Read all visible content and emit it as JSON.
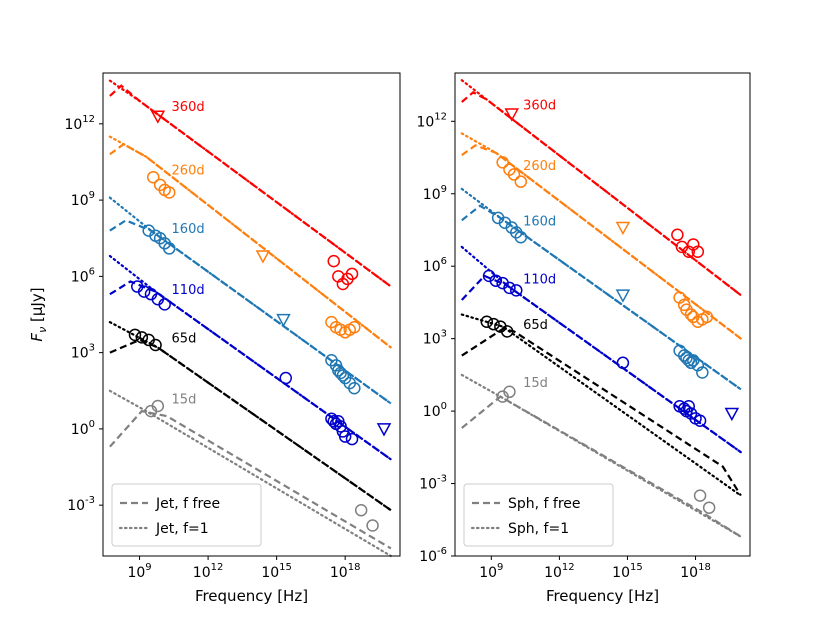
{
  "chart_data": [
    {
      "type": "line",
      "panel": "left",
      "xlabel": "Frequency [Hz]",
      "ylabel": "F_ν [μJy]",
      "xscale": "log",
      "yscale": "log",
      "xlim_log10": [
        7.4,
        20.4
      ],
      "ylim_log10": [
        -5.0,
        14.0
      ],
      "xticks": [
        {
          "v": 9,
          "label": "10^9"
        },
        {
          "v": 12,
          "label": "10^12"
        },
        {
          "v": 15,
          "label": "10^15"
        },
        {
          "v": 18,
          "label": "10^18"
        }
      ],
      "yticks": [
        {
          "v": 12,
          "label": "10^12"
        },
        {
          "v": 9,
          "label": "10^9"
        },
        {
          "v": 6,
          "label": "10^6"
        },
        {
          "v": 3,
          "label": "10^3"
        },
        {
          "v": 0,
          "label": "10^0"
        },
        {
          "v": -3,
          "label": "10^-3"
        }
      ],
      "legend": {
        "location": "lower-left",
        "entries": [
          {
            "style": "dashed",
            "label": "Jet, f free"
          },
          {
            "style": "dotted",
            "label": "Jet, f=1"
          }
        ]
      },
      "series": [
        {
          "name": "360d",
          "color": "#ff0000",
          "model_dashed": [
            [
              7.7,
              13.1
            ],
            [
              8.2,
              13.5
            ],
            [
              9.0,
              12.9
            ],
            [
              20.0,
              5.6
            ]
          ],
          "model_dotted": [
            [
              7.7,
              13.7
            ],
            [
              9.0,
              12.9
            ],
            [
              20.0,
              5.6
            ]
          ],
          "points": [
            [
              17.5,
              6.6
            ],
            [
              17.7,
              6.0
            ],
            [
              17.9,
              5.7
            ],
            [
              18.1,
              5.9
            ],
            [
              18.3,
              6.1
            ]
          ],
          "upper_limits": [
            [
              9.8,
              12.3
            ]
          ],
          "label": {
            "text": "360d",
            "pos": [
              10.4,
              12.7
            ]
          }
        },
        {
          "name": "260d",
          "color": "#ff7f0e",
          "model_dashed": [
            [
              7.7,
              10.8
            ],
            [
              8.3,
              11.2
            ],
            [
              9.3,
              10.7
            ],
            [
              20.0,
              3.2
            ]
          ],
          "model_dotted": [
            [
              7.7,
              11.5
            ],
            [
              9.3,
              10.7
            ],
            [
              20.0,
              3.2
            ]
          ],
          "points": [
            [
              9.6,
              9.9
            ],
            [
              9.9,
              9.6
            ],
            [
              10.1,
              9.4
            ],
            [
              10.3,
              9.3
            ],
            [
              17.4,
              4.2
            ],
            [
              17.6,
              4.0
            ],
            [
              17.8,
              3.9
            ],
            [
              18.0,
              3.8
            ],
            [
              18.2,
              3.9
            ],
            [
              18.4,
              4.0
            ]
          ],
          "upper_limits": [
            [
              14.4,
              6.8
            ]
          ],
          "label": {
            "text": "260d",
            "pos": [
              10.4,
              10.2
            ]
          }
        },
        {
          "name": "160d",
          "color": "#1f77b4",
          "model_dashed": [
            [
              7.7,
              7.8
            ],
            [
              8.4,
              8.2
            ],
            [
              9.5,
              7.8
            ],
            [
              20.0,
              1.0
            ]
          ],
          "model_dotted": [
            [
              7.7,
              9.1
            ],
            [
              9.5,
              7.8
            ],
            [
              20.0,
              1.0
            ]
          ],
          "points": [
            [
              9.4,
              7.8
            ],
            [
              9.7,
              7.6
            ],
            [
              9.9,
              7.5
            ],
            [
              10.1,
              7.3
            ],
            [
              10.3,
              7.1
            ],
            [
              17.4,
              2.7
            ],
            [
              17.6,
              2.5
            ],
            [
              17.7,
              2.3
            ],
            [
              17.8,
              2.2
            ],
            [
              17.9,
              2.1
            ],
            [
              18.0,
              2.0
            ],
            [
              18.2,
              1.8
            ],
            [
              18.4,
              1.6
            ]
          ],
          "upper_limits": [
            [
              15.3,
              4.3
            ]
          ],
          "label": {
            "text": "160d",
            "pos": [
              10.4,
              7.9
            ]
          }
        },
        {
          "name": "110d",
          "color": "#0000cc",
          "model_dashed": [
            [
              7.7,
              5.3
            ],
            [
              8.6,
              5.8
            ],
            [
              9.7,
              5.4
            ],
            [
              20.0,
              -1.2
            ]
          ],
          "model_dotted": [
            [
              7.7,
              6.8
            ],
            [
              9.7,
              5.4
            ],
            [
              20.0,
              -1.2
            ]
          ],
          "points": [
            [
              8.9,
              5.6
            ],
            [
              9.2,
              5.4
            ],
            [
              9.5,
              5.3
            ],
            [
              9.8,
              5.1
            ],
            [
              10.1,
              4.9
            ],
            [
              15.4,
              2.0
            ],
            [
              17.4,
              0.4
            ],
            [
              17.5,
              0.3
            ],
            [
              17.6,
              0.2
            ],
            [
              17.7,
              0.3
            ],
            [
              17.8,
              0.1
            ],
            [
              17.9,
              -0.1
            ],
            [
              18.0,
              -0.3
            ],
            [
              18.3,
              -0.4
            ]
          ],
          "upper_limits": [
            [
              19.7,
              0.0
            ]
          ],
          "label": {
            "text": "110d",
            "pos": [
              10.4,
              5.5
            ]
          }
        },
        {
          "name": "65d",
          "color": "#000000",
          "model_dashed": [
            [
              7.7,
              3.0
            ],
            [
              9.0,
              3.5
            ],
            [
              9.8,
              3.2
            ],
            [
              20.0,
              -3.2
            ]
          ],
          "model_dotted": [
            [
              7.7,
              4.2
            ],
            [
              9.8,
              3.2
            ],
            [
              20.0,
              -3.2
            ]
          ],
          "points": [
            [
              8.8,
              3.7
            ],
            [
              9.1,
              3.6
            ],
            [
              9.4,
              3.5
            ],
            [
              9.7,
              3.3
            ]
          ],
          "upper_limits": [],
          "label": {
            "text": "65d",
            "pos": [
              10.4,
              3.6
            ]
          }
        },
        {
          "name": "15d",
          "color": "#808080",
          "model_dashed": [
            [
              7.7,
              -0.7
            ],
            [
              9.1,
              0.7
            ],
            [
              10.2,
              0.5
            ],
            [
              20.0,
              -4.7
            ]
          ],
          "model_dotted": [
            [
              7.7,
              1.5
            ],
            [
              9.1,
              0.8
            ],
            [
              20.0,
              -5.0
            ]
          ],
          "points": [
            [
              9.5,
              0.7
            ],
            [
              9.8,
              0.9
            ],
            [
              18.7,
              -3.2
            ],
            [
              19.2,
              -3.8
            ]
          ],
          "upper_limits": [],
          "label": {
            "text": "15d",
            "pos": [
              10.4,
              1.2
            ]
          }
        }
      ]
    },
    {
      "type": "line",
      "panel": "right",
      "xlabel": "Frequency [Hz]",
      "ylabel": "",
      "xscale": "log",
      "yscale": "log",
      "xlim_log10": [
        7.4,
        20.4
      ],
      "ylim_log10": [
        -6.0,
        14.0
      ],
      "xticks": [
        {
          "v": 9,
          "label": "10^9"
        },
        {
          "v": 12,
          "label": "10^12"
        },
        {
          "v": 15,
          "label": "10^15"
        },
        {
          "v": 18,
          "label": "10^18"
        }
      ],
      "yticks": [
        {
          "v": 12,
          "label": "10^12"
        },
        {
          "v": 9,
          "label": "10^9"
        },
        {
          "v": 6,
          "label": "10^6"
        },
        {
          "v": 3,
          "label": "10^3"
        },
        {
          "v": 0,
          "label": "10^0"
        },
        {
          "v": -3,
          "label": "10^-3"
        },
        {
          "v": -6,
          "label": "10^-6"
        }
      ],
      "legend": {
        "location": "lower-left",
        "entries": [
          {
            "style": "dashed",
            "label": "Sph, f free"
          },
          {
            "style": "dotted",
            "label": "Sph, f=1"
          }
        ]
      },
      "series": [
        {
          "name": "360d",
          "color": "#ff0000",
          "model_dashed": [
            [
              7.7,
              12.8
            ],
            [
              8.2,
              13.2
            ],
            [
              8.8,
              12.9
            ],
            [
              20.0,
              4.8
            ]
          ],
          "model_dotted": [
            [
              7.7,
              13.7
            ],
            [
              8.8,
              12.9
            ],
            [
              20.0,
              4.8
            ]
          ],
          "points": [
            [
              17.2,
              7.3
            ],
            [
              17.4,
              6.8
            ],
            [
              17.7,
              6.6
            ],
            [
              17.9,
              6.9
            ],
            [
              18.1,
              6.6
            ]
          ],
          "upper_limits": [
            [
              9.9,
              12.3
            ]
          ],
          "label": {
            "text": "360d",
            "pos": [
              10.4,
              12.7
            ]
          }
        },
        {
          "name": "260d",
          "color": "#ff7f0e",
          "model_dashed": [
            [
              7.7,
              10.6
            ],
            [
              8.3,
              11.0
            ],
            [
              9.2,
              10.7
            ],
            [
              20.0,
              3.0
            ]
          ],
          "model_dotted": [
            [
              7.7,
              11.5
            ],
            [
              9.2,
              10.7
            ],
            [
              20.0,
              3.0
            ]
          ],
          "points": [
            [
              9.5,
              10.3
            ],
            [
              9.8,
              10.0
            ],
            [
              10.0,
              9.8
            ],
            [
              10.3,
              9.5
            ],
            [
              17.3,
              4.7
            ],
            [
              17.5,
              4.4
            ],
            [
              17.6,
              4.2
            ],
            [
              17.8,
              4.0
            ],
            [
              17.9,
              3.9
            ],
            [
              18.1,
              3.7
            ],
            [
              18.3,
              3.8
            ],
            [
              18.5,
              3.9
            ]
          ],
          "upper_limits": [
            [
              14.8,
              7.6
            ]
          ],
          "label": {
            "text": "260d",
            "pos": [
              10.4,
              10.2
            ]
          }
        },
        {
          "name": "160d",
          "color": "#1f77b4",
          "model_dashed": [
            [
              7.7,
              7.9
            ],
            [
              8.5,
              8.5
            ],
            [
              9.4,
              8.0
            ],
            [
              20.0,
              0.9
            ]
          ],
          "model_dotted": [
            [
              7.7,
              9.2
            ],
            [
              9.4,
              8.0
            ],
            [
              20.0,
              0.9
            ]
          ],
          "points": [
            [
              9.3,
              8.0
            ],
            [
              9.6,
              7.8
            ],
            [
              9.9,
              7.6
            ],
            [
              10.1,
              7.4
            ],
            [
              10.3,
              7.2
            ],
            [
              17.3,
              2.5
            ],
            [
              17.5,
              2.3
            ],
            [
              17.6,
              2.2
            ],
            [
              17.7,
              2.1
            ],
            [
              17.8,
              2.0
            ],
            [
              17.9,
              2.1
            ],
            [
              18.1,
              1.9
            ],
            [
              18.3,
              1.6
            ]
          ],
          "upper_limits": [
            [
              14.8,
              4.8
            ]
          ],
          "label": {
            "text": "160d",
            "pos": [
              10.4,
              7.9
            ]
          }
        },
        {
          "name": "110d",
          "color": "#0000cc",
          "model_dashed": [
            [
              7.7,
              4.6
            ],
            [
              8.7,
              5.6
            ],
            [
              9.7,
              5.2
            ],
            [
              20.0,
              -1.7
            ]
          ],
          "model_dotted": [
            [
              7.7,
              6.8
            ],
            [
              9.7,
              5.2
            ],
            [
              20.0,
              -1.7
            ]
          ],
          "points": [
            [
              8.9,
              5.6
            ],
            [
              9.2,
              5.4
            ],
            [
              9.5,
              5.3
            ],
            [
              9.8,
              5.1
            ],
            [
              10.1,
              5.0
            ],
            [
              14.8,
              2.0
            ],
            [
              17.3,
              0.2
            ],
            [
              17.5,
              0.1
            ],
            [
              17.6,
              0.0
            ],
            [
              17.7,
              0.2
            ],
            [
              17.8,
              -0.1
            ],
            [
              18.0,
              -0.3
            ],
            [
              18.2,
              -0.4
            ]
          ],
          "upper_limits": [
            [
              19.6,
              -0.1
            ]
          ],
          "label": {
            "text": "110d",
            "pos": [
              10.4,
              5.5
            ]
          }
        },
        {
          "name": "65d",
          "color": "#000000",
          "model_dashed": [
            [
              7.7,
              2.3
            ],
            [
              9.5,
              3.4
            ],
            [
              10.0,
              3.3
            ],
            [
              19.2,
              -2.3
            ],
            [
              20.0,
              -3.5
            ]
          ],
          "model_dotted": [
            [
              7.7,
              4.0
            ],
            [
              9.5,
              3.5
            ],
            [
              20.0,
              -3.5
            ]
          ],
          "points": [
            [
              8.8,
              3.7
            ],
            [
              9.1,
              3.6
            ],
            [
              9.4,
              3.5
            ],
            [
              9.7,
              3.3
            ]
          ],
          "upper_limits": [],
          "label": {
            "text": "65d",
            "pos": [
              10.4,
              3.6
            ]
          }
        },
        {
          "name": "15d",
          "color": "#808080",
          "model_dashed": [
            [
              7.7,
              -0.7
            ],
            [
              9.4,
              0.6
            ],
            [
              18.3,
              -4.2
            ],
            [
              20.0,
              -5.2
            ]
          ],
          "model_dotted": [
            [
              7.7,
              1.5
            ],
            [
              9.4,
              0.6
            ],
            [
              20.0,
              -5.2
            ]
          ],
          "points": [
            [
              9.5,
              0.6
            ],
            [
              9.8,
              0.8
            ],
            [
              18.2,
              -3.5
            ],
            [
              18.6,
              -4.0
            ]
          ],
          "upper_limits": [],
          "label": {
            "text": "15d",
            "pos": [
              10.4,
              1.2
            ]
          }
        }
      ]
    }
  ]
}
